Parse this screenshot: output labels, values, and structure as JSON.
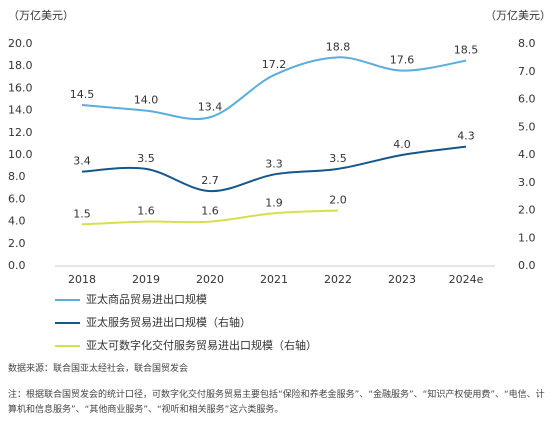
{
  "chart_data": {
    "type": "line",
    "y_label": "（万亿美元）",
    "y2_label": "（万亿美元）",
    "categories": [
      "2018",
      "2019",
      "2020",
      "2021",
      "2022",
      "2023",
      "2024e"
    ],
    "ylim": [
      0,
      20
    ],
    "yticks": [
      {
        "value": 0,
        "label": "0.0"
      },
      {
        "value": 2,
        "label": "2.0"
      },
      {
        "value": 4,
        "label": "4.0"
      },
      {
        "value": 6,
        "label": "6.0"
      },
      {
        "value": 8,
        "label": "8.0"
      },
      {
        "value": 10,
        "label": "10.0"
      },
      {
        "value": 12,
        "label": "12.0"
      },
      {
        "value": 14,
        "label": "14.0"
      },
      {
        "value": 16,
        "label": "16.0"
      },
      {
        "value": 18,
        "label": "18.0"
      },
      {
        "value": 20,
        "label": "20.0"
      }
    ],
    "y2lim": [
      0,
      8
    ],
    "y2ticks": [
      {
        "value": 0,
        "label": "0.0"
      },
      {
        "value": 1,
        "label": "1.0"
      },
      {
        "value": 2,
        "label": "2.0"
      },
      {
        "value": 3,
        "label": "3.0"
      },
      {
        "value": 4,
        "label": "4.0"
      },
      {
        "value": 5,
        "label": "5.0"
      },
      {
        "value": 6,
        "label": "6.0"
      },
      {
        "value": 7,
        "label": "7.0"
      },
      {
        "value": 8,
        "label": "8.0"
      }
    ],
    "series": [
      {
        "name": "亚太商品贸易进出口规模",
        "color": "#5aaedc",
        "axis": "y",
        "values": [
          14.5,
          14.0,
          13.4,
          17.2,
          18.8,
          17.6,
          18.5
        ],
        "value_labels": [
          "14.5",
          "14.0",
          "13.4",
          "17.2",
          "18.8",
          "17.6",
          "18.5"
        ]
      },
      {
        "name": "亚太服务贸易进出口规模（右轴）",
        "color": "#16578a",
        "axis": "y2",
        "values": [
          3.4,
          3.5,
          2.7,
          3.3,
          3.5,
          4.0,
          4.3
        ],
        "value_labels": [
          "3.4",
          "3.5",
          "2.7",
          "3.3",
          "3.5",
          "4.0",
          "4.3"
        ]
      },
      {
        "name": "亚太可数字化交付服务贸易进出口规模（右轴）",
        "color": "#d6e04c",
        "axis": "y2",
        "values": [
          1.5,
          1.6,
          1.6,
          1.9,
          2.0,
          null,
          null
        ],
        "value_labels": [
          "1.5",
          "1.6",
          "1.6",
          "1.9",
          "2.0",
          null,
          null
        ]
      }
    ]
  },
  "source": "数据来源：联合国亚太经社会，联合国贸发会",
  "note": "注：根据联合国贸发会的统计口径，可数字化交付服务贸易主要包括“保险和养老金服务”、“金融服务”、“知识产权使用费”、“电信、计算机和信息服务”、“其他商业服务”、“视听和相关服务”这六类服务。"
}
